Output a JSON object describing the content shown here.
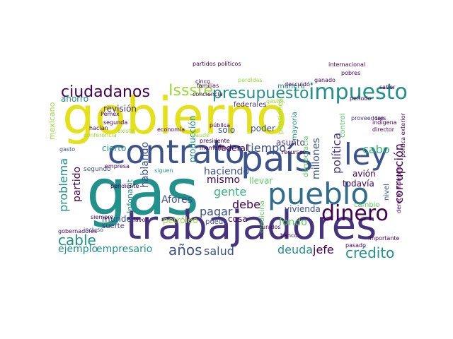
{
  "word_cloud": {
    "palette": {
      "yellow": "#e4e11b",
      "lime": "#9bd93c",
      "green": "#5ec962",
      "teal": "#21918c",
      "blue": "#2f6c8e",
      "navy": "#3b528b",
      "indigo": "#46337e",
      "purple": "#440154",
      "mint": "#35b779"
    },
    "words": [
      {
        "text": "gobierno"
      },
      {
        "text": "gas"
      },
      {
        "text": "trabajadores"
      },
      {
        "text": "país"
      },
      {
        "text": "pueblo"
      },
      {
        "text": "contrato"
      },
      {
        "text": "ley"
      },
      {
        "text": "impuesto"
      },
      {
        "text": "dinero"
      },
      {
        "text": "presupuesto"
      },
      {
        "text": "ciudadanos"
      },
      {
        "text": "Issste"
      },
      {
        "text": "crédito"
      },
      {
        "text": "cable"
      },
      {
        "text": "corrupción"
      },
      {
        "text": "años"
      },
      {
        "text": "salud"
      },
      {
        "text": "deuda"
      },
      {
        "text": "jefe"
      },
      {
        "text": "empresario"
      },
      {
        "text": "gente"
      },
      {
        "text": "problema"
      },
      {
        "text": "partido"
      },
      {
        "text": "cabo"
      },
      {
        "text": "política"
      },
      {
        "text": "tiempo"
      },
      {
        "text": "mismo"
      },
      {
        "text": "debe"
      },
      {
        "text": "pagar"
      },
      {
        "text": "ejemplo"
      },
      {
        "text": "haciendo"
      },
      {
        "text": "fondo"
      },
      {
        "text": "poder"
      },
      {
        "text": "Afores"
      },
      {
        "text": "hablando"
      },
      {
        "text": "petróleo"
      },
      {
        "text": "vivienda"
      },
      {
        "text": "millones"
      },
      {
        "text": "revisión"
      },
      {
        "text": "cierto"
      },
      {
        "text": "ahorro"
      },
      {
        "text": "sólo"
      },
      {
        "text": "federal"
      },
      {
        "text": "federales"
      },
      {
        "text": "manera"
      },
      {
        "text": "asunto"
      },
      {
        "text": "mayoría"
      },
      {
        "text": "democracia"
      },
      {
        "text": "pensiones"
      },
      {
        "text": "producción"
      },
      {
        "text": "avión"
      },
      {
        "text": "todavía"
      },
      {
        "text": "llevar"
      },
      {
        "text": "cosa"
      },
      {
        "text": "puedo"
      },
      {
        "text": "medicina"
      },
      {
        "text": "mundo"
      },
      {
        "text": "suerte"
      },
      {
        "text": "control"
      },
      {
        "text": "nivel"
      },
      {
        "text": "cambio"
      },
      {
        "text": "Infonavit"
      },
      {
        "text": "mexicano"
      },
      {
        "text": "segundo"
      },
      {
        "text": "gasto"
      },
      {
        "text": "incluso"
      },
      {
        "text": "siguen"
      },
      {
        "text": "descuidó"
      },
      {
        "text": "proveedores"
      },
      {
        "text": "partidos políticos"
      },
      {
        "text": "internacional"
      },
      {
        "text": "cinco"
      },
      {
        "text": "Pemex"
      },
      {
        "text": "segunda"
      },
      {
        "text": "hacían"
      },
      {
        "text": "existe"
      },
      {
        "text": "economía"
      },
      {
        "text": "director"
      },
      {
        "text": "indígena"
      },
      {
        "text": "familias"
      },
      {
        "text": "conciencia"
      },
      {
        "text": "pública"
      },
      {
        "text": "fraude"
      },
      {
        "text": "siempre"
      },
      {
        "text": "gobernadores"
      },
      {
        "text": "favor"
      },
      {
        "text": "pasado"
      },
      {
        "text": "pendiente"
      },
      {
        "text": "importante"
      },
      {
        "text": "empresa"
      },
      {
        "text": "recursos"
      },
      {
        "text": "unidos"
      },
      {
        "text": "gastos"
      },
      {
        "text": "saber"
      },
      {
        "text": "periodo"
      },
      {
        "text": "política exterior"
      },
      {
        "text": "conferencia"
      },
      {
        "text": "momento"
      },
      {
        "text": "perdidas"
      },
      {
        "text": "presidente"
      },
      {
        "text": "tan"
      },
      {
        "text": "derecho humano"
      },
      {
        "text": "ganado"
      },
      {
        "text": "banco"
      },
      {
        "text": "pobres"
      }
    ]
  }
}
